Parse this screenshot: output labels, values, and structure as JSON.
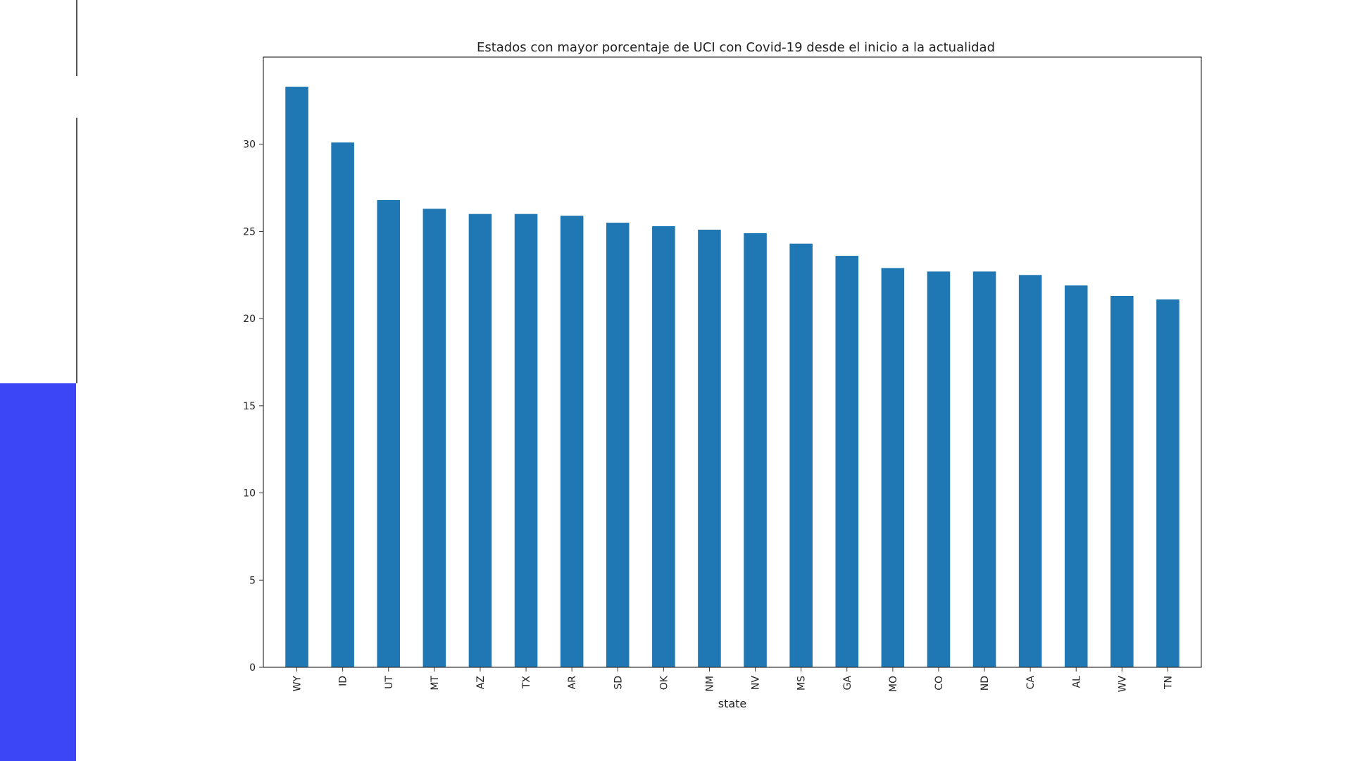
{
  "theme": {
    "bar_color": "#1f77b4",
    "side_block_color": "#3c46f7",
    "side_rule_color": "#555555"
  },
  "chart_data": {
    "type": "bar",
    "title": "Estados con mayor porcentaje de UCI con Covid-19 desde el inicio a la actualidad",
    "xlabel": "state",
    "ylabel": "",
    "categories": [
      "WY",
      "ID",
      "UT",
      "MT",
      "AZ",
      "TX",
      "AR",
      "SD",
      "OK",
      "NM",
      "NV",
      "MS",
      "GA",
      "MO",
      "CO",
      "ND",
      "CA",
      "AL",
      "WV",
      "TN"
    ],
    "values": [
      33.3,
      30.1,
      26.8,
      26.3,
      26.0,
      26.0,
      25.9,
      25.5,
      25.3,
      25.1,
      24.9,
      24.3,
      23.6,
      22.9,
      22.7,
      22.7,
      22.5,
      21.9,
      21.3,
      21.1
    ],
    "yticks": [
      0,
      5,
      10,
      15,
      20,
      25,
      30
    ],
    "ylim": [
      0,
      35
    ],
    "grid": false,
    "legend": false
  }
}
